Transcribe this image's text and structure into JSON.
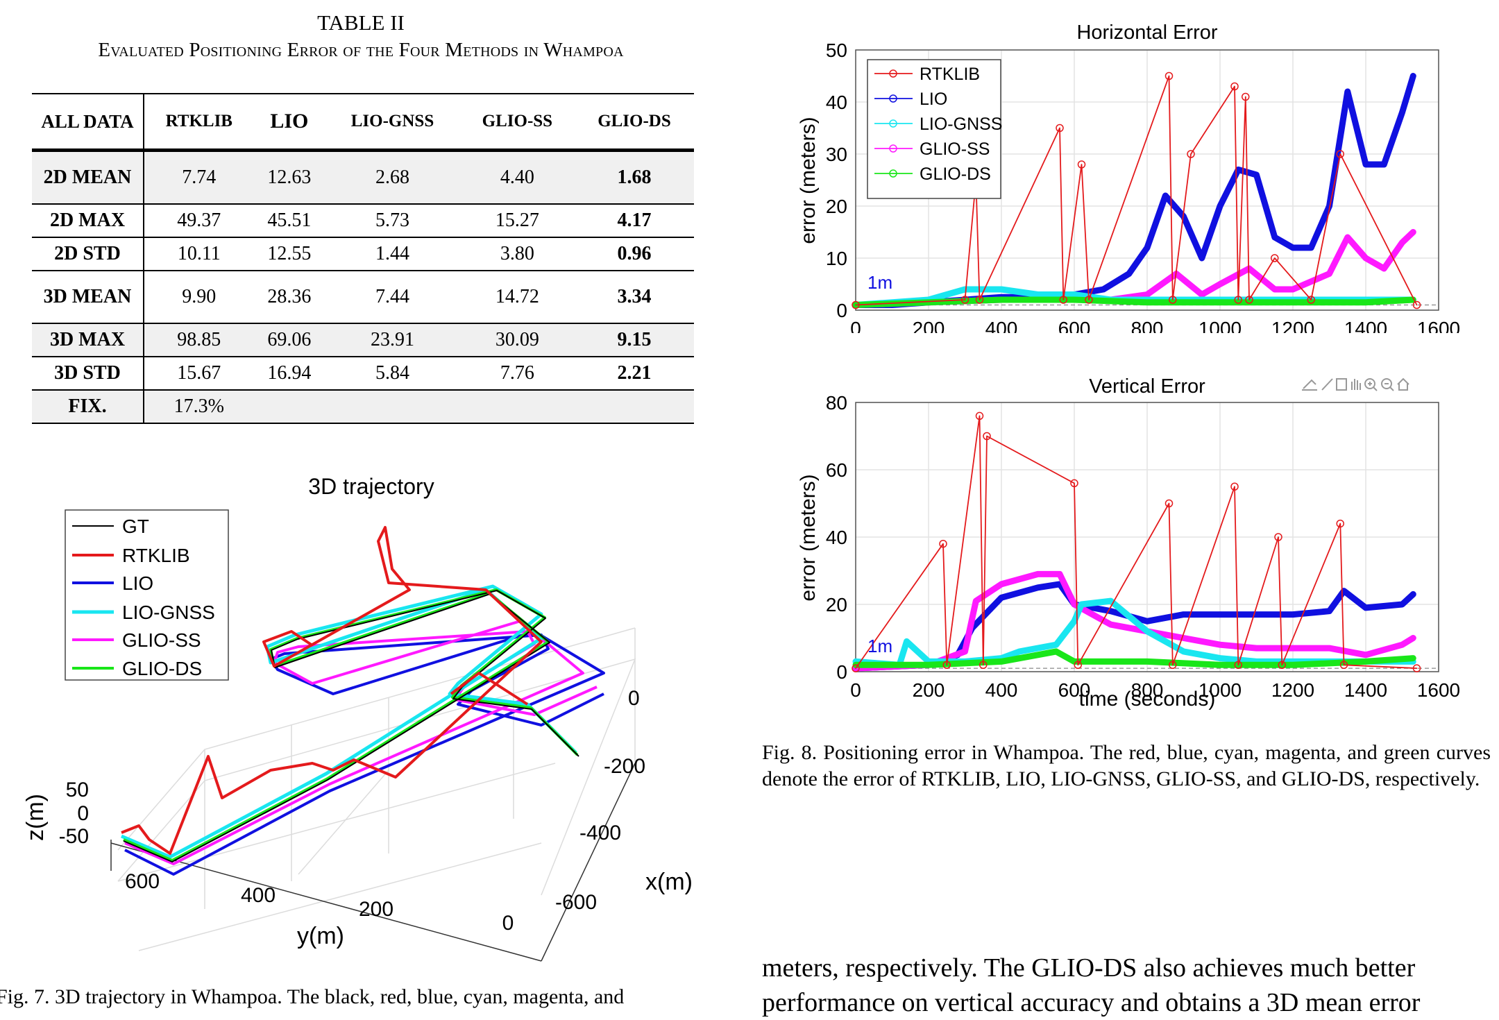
{
  "table": {
    "title": "TABLE II",
    "caption": "Evaluated Positioning Error of the Four Methods in Whampoa",
    "header": [
      "ALL DATA",
      "RTKLIB",
      "LIO",
      "LIO-GNSS",
      "GLIO-SS",
      "GLIO-DS"
    ],
    "rows": [
      {
        "label": "2D MEAN",
        "values": [
          "7.74",
          "12.63",
          "2.68",
          "4.40",
          "1.68"
        ]
      },
      {
        "label": "2D MAX",
        "values": [
          "49.37",
          "45.51",
          "5.73",
          "15.27",
          "4.17"
        ]
      },
      {
        "label": "2D STD",
        "values": [
          "10.11",
          "12.55",
          "1.44",
          "3.80",
          "0.96"
        ]
      },
      {
        "label": "3D MEAN",
        "values": [
          "9.90",
          "28.36",
          "7.44",
          "14.72",
          "3.34"
        ]
      },
      {
        "label": "3D MAX",
        "values": [
          "98.85",
          "69.06",
          "23.91",
          "30.09",
          "9.15"
        ]
      },
      {
        "label": "3D STD",
        "values": [
          "15.67",
          "16.94",
          "5.84",
          "7.76",
          "2.21"
        ]
      },
      {
        "label": "FIX.",
        "values": [
          "17.3%",
          "",
          "",
          "",
          ""
        ]
      }
    ]
  },
  "fig7": {
    "caption": "Fig. 7.    3D trajectory in Whampoa. The black, red, blue, cyan, magenta, and"
  },
  "fig8": {
    "caption": "Fig. 8.    Positioning error in Whampoa. The red, blue, cyan, magenta, and green curves denote the error of RTKLIB, LIO, LIO-GNSS, GLIO-SS, and GLIO-DS, respectively."
  },
  "body_text": {
    "line1": "meters, respectively. The GLIO-DS also achieves much better",
    "line2": "performance on vertical accuracy and obtains a 3D mean error"
  },
  "colors": {
    "GT": "#000000",
    "RTKLIB": "#e41a1c",
    "LIO": "#1010e0",
    "LIO-GNSS": "#19e6f0",
    "GLIO-SS": "#ff19ff",
    "GLIO-DS": "#19e619"
  },
  "chart_data": [
    {
      "type": "line",
      "title": "3D trajectory",
      "xlabel": "y(m)",
      "ylabel": "x(m)",
      "zlabel": "z(m)",
      "y_ticks": [
        "600",
        "400",
        "200",
        "0"
      ],
      "x_ticks": [
        "0",
        "-200",
        "-400",
        "-600"
      ],
      "z_ticks": [
        "50",
        "0",
        "-50"
      ],
      "legend": [
        "GT",
        "RTKLIB",
        "LIO",
        "LIO-GNSS",
        "GLIO-SS",
        "GLIO-DS"
      ],
      "legend_position": "top-left",
      "grid": true
    },
    {
      "type": "line",
      "title": "Horizontal Error",
      "xlabel": "",
      "ylabel": "error (meters)",
      "xlim": [
        0,
        1600
      ],
      "ylim": [
        0,
        50
      ],
      "x_ticks": [
        0,
        200,
        400,
        600,
        800,
        1000,
        1200,
        1400,
        1600
      ],
      "y_ticks": [
        0,
        10,
        20,
        30,
        40,
        50
      ],
      "annotation": "1m",
      "legend": [
        "RTKLIB",
        "LIO",
        "LIO-GNSS",
        "GLIO-SS",
        "GLIO-DS"
      ],
      "legend_position": "top-left",
      "grid": true,
      "series": [
        {
          "name": "LIO",
          "x": [
            0,
            100,
            200,
            300,
            400,
            500,
            600,
            680,
            750,
            800,
            850,
            900,
            950,
            1000,
            1050,
            1100,
            1150,
            1200,
            1250,
            1300,
            1350,
            1400,
            1450,
            1500,
            1530
          ],
          "y": [
            1,
            1,
            1.5,
            2,
            2.5,
            2.5,
            3,
            4,
            7,
            12,
            22,
            18,
            10,
            20,
            27,
            26,
            14,
            12,
            12,
            20,
            42,
            28,
            28,
            38,
            45
          ]
        },
        {
          "name": "GLIO-SS",
          "x": [
            0,
            200,
            400,
            600,
            700,
            800,
            880,
            950,
            1000,
            1080,
            1150,
            1200,
            1300,
            1350,
            1400,
            1450,
            1500,
            1530
          ],
          "y": [
            1,
            1.5,
            2,
            2,
            2,
            3,
            7,
            3,
            5,
            8,
            4,
            4,
            7,
            14,
            10,
            8,
            13,
            15
          ]
        },
        {
          "name": "LIO-GNSS",
          "x": [
            0,
            200,
            300,
            400,
            500,
            600,
            700,
            800,
            1000,
            1200,
            1400,
            1530
          ],
          "y": [
            1,
            2,
            4,
            4,
            3,
            3,
            2,
            2,
            2,
            2,
            2,
            2
          ]
        },
        {
          "name": "GLIO-DS",
          "x": [
            0,
            200,
            400,
            600,
            800,
            1000,
            1200,
            1400,
            1530
          ],
          "y": [
            1,
            1.5,
            2,
            2,
            1.5,
            1.5,
            1.5,
            1.5,
            2
          ]
        },
        {
          "name": "RTKLIB",
          "x": [
            0,
            300,
            330,
            340,
            560,
            570,
            620,
            640,
            860,
            870,
            920,
            1040,
            1050,
            1070,
            1080,
            1150,
            1250,
            1330,
            1540
          ],
          "y": [
            1,
            2,
            25,
            2,
            35,
            2,
            28,
            2,
            45,
            2,
            30,
            43,
            2,
            41,
            2,
            10,
            2,
            30,
            1
          ]
        }
      ]
    },
    {
      "type": "line",
      "title": "Vertical Error",
      "xlabel": "time (seconds)",
      "ylabel": "error (meters)",
      "xlim": [
        0,
        1600
      ],
      "ylim": [
        0,
        80
      ],
      "x_ticks": [
        0,
        200,
        400,
        600,
        800,
        1000,
        1200,
        1400,
        1600
      ],
      "y_ticks": [
        0,
        20,
        40,
        60,
        80
      ],
      "annotation": "1m",
      "grid": true,
      "series": [
        {
          "name": "LIO",
          "x": [
            0,
            200,
            280,
            320,
            400,
            500,
            560,
            600,
            700,
            800,
            900,
            1000,
            1100,
            1200,
            1300,
            1340,
            1400,
            1500,
            1530
          ],
          "y": [
            1,
            2,
            5,
            13,
            22,
            25,
            26,
            20,
            18,
            15,
            17,
            17,
            17,
            17,
            18,
            24,
            19,
            20,
            23
          ]
        },
        {
          "name": "GLIO-SS",
          "x": [
            0,
            200,
            300,
            330,
            400,
            500,
            560,
            600,
            700,
            800,
            900,
            1000,
            1100,
            1200,
            1300,
            1400,
            1500,
            1530
          ],
          "y": [
            1,
            2,
            6,
            21,
            26,
            29,
            29,
            20,
            14,
            12,
            10,
            8,
            7,
            7,
            7,
            5,
            8,
            10
          ]
        },
        {
          "name": "LIO-GNSS",
          "x": [
            0,
            120,
            140,
            200,
            300,
            400,
            450,
            550,
            600,
            620,
            700,
            800,
            900,
            1000,
            1100,
            1300,
            1530
          ],
          "y": [
            3,
            2,
            9,
            3,
            3,
            4,
            6,
            8,
            15,
            20,
            21,
            12,
            6,
            4,
            3,
            3,
            3
          ]
        },
        {
          "name": "GLIO-DS",
          "x": [
            0,
            200,
            400,
            500,
            550,
            600,
            800,
            1000,
            1200,
            1400,
            1530
          ],
          "y": [
            2,
            2,
            3,
            5,
            6,
            3,
            3,
            2,
            2,
            3,
            4
          ]
        },
        {
          "name": "RTKLIB",
          "x": [
            0,
            240,
            250,
            340,
            350,
            360,
            600,
            610,
            860,
            870,
            1040,
            1050,
            1160,
            1170,
            1330,
            1340,
            1540
          ],
          "y": [
            1,
            38,
            2,
            76,
            2,
            70,
            56,
            2,
            50,
            2,
            55,
            2,
            40,
            2,
            44,
            2,
            1
          ]
        }
      ]
    }
  ]
}
